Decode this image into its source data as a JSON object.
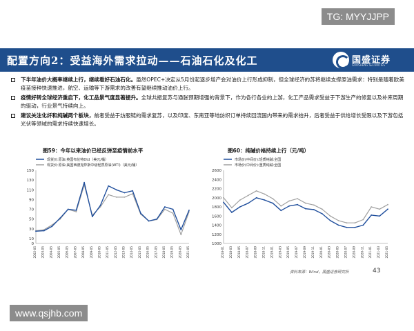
{
  "watermarks": {
    "tg": "TG: MYYJJPP",
    "url": "www.qsjhb.com"
  },
  "header": {
    "title": "配置方向2：受益海外需求拉动——石油石化及化工",
    "logo_text": "国盛证券",
    "logo_sub": "GUOSHENG SECURITIES"
  },
  "bullets": [
    {
      "bold": "下半年油价大概率继续上行，继续看好石油石化。",
      "text": "虽然OPEC+决定从5月份起逐步增产会对油价上行形成抑制，但全球经济的苏将继续支撑原油需求：特别是随着欧美疫苗接种快速推进，航空、运输等下游需求的改善有望继续推动油价上行。"
    },
    {
      "bold": "疫情好转全球经济重启下，化工品景气度显著提升。",
      "text": "全球共振复苏与通胀预期增强的背景下，作为各行各业的上游，化工产品需求受益于下游生产的修复以及补库周期的驱动，行业景气持续向上。"
    },
    {
      "bold": "建议关注化纤和纯碱两个板块，",
      "text": "前者受益于纺服链的需求复苏，以及印度、东南亚等地纺织订单持续回流国内带来的需求抬升，后者受益于供给增长受限以及下游包括光伏等领域的需求持续快速增长。"
    }
  ],
  "chart_left": {
    "title": "图59：今年以来油价已经反弹至疫情前水平",
    "legend": [
      {
        "name": "现货价:原油:英国布伦特Dtd（美元/桶）",
        "color": "#1f4e9c"
      },
      {
        "name": "现货价:原油:美国西德克萨斯中级轻质原油(WTI)（美元/桶）",
        "color": "#a0a0a0"
      }
    ],
    "y_ticks": [
      "0",
      "10",
      "30",
      "50",
      "70",
      "90",
      "110",
      "130",
      "150"
    ],
    "x_ticks": [
      "2002-05",
      "2003-05",
      "2004-05",
      "2005-05",
      "2006-05",
      "2007-05",
      "2008-05",
      "2009-05",
      "2010-05",
      "2011-05",
      "2012-05",
      "2013-05",
      "2014-05",
      "2015-05",
      "2016-05",
      "2017-05",
      "2018-05",
      "2019-05",
      "2020-05",
      "2021-05"
    ]
  },
  "chart_right": {
    "title": "图60：纯碱价格持续上行（元/吨）",
    "legend": [
      {
        "name": "市场价(中间价):轻质纯碱:全国",
        "color": "#1f4e9c"
      },
      {
        "name": "市场价(中间价):重质纯碱:全国",
        "color": "#a0a0a0"
      }
    ],
    "y_ticks": [
      "1000",
      "1200",
      "1400",
      "1600",
      "1800",
      "2000",
      "2200",
      "2400",
      "2600"
    ],
    "x_ticks": [
      "2018-01",
      "2018-03",
      "2018-05",
      "2018-07",
      "2018-09",
      "2018-11",
      "2019-01",
      "2019-03",
      "2019-05",
      "2019-07",
      "2019-09",
      "2019-11",
      "2020-01",
      "2020-03",
      "2020-05",
      "2020-07",
      "2020-09",
      "2020-11",
      "2021-01",
      "2021-03",
      "2021-05"
    ]
  },
  "chart_data": [
    {
      "type": "line",
      "title": "图59：今年以来油价已经反弹至疫情前水平",
      "ylim": [
        0,
        150
      ],
      "x": [
        "2002-05",
        "2003-05",
        "2004-05",
        "2005-05",
        "2006-05",
        "2007-05",
        "2008-05",
        "2009-05",
        "2010-05",
        "2011-05",
        "2012-05",
        "2013-05",
        "2014-05",
        "2015-05",
        "2016-05",
        "2017-05",
        "2018-05",
        "2019-05",
        "2020-05",
        "2021-05"
      ],
      "series": [
        {
          "name": "现货价:原油:英国布伦特Dtd（美元/桶）",
          "values": [
            25,
            26,
            35,
            52,
            70,
            68,
            125,
            55,
            78,
            118,
            110,
            104,
            108,
            62,
            46,
            50,
            75,
            70,
            28,
            68
          ]
        },
        {
          "name": "现货价:原油:美国西德克萨斯中级轻质原油(WTI)（美元/桶）",
          "values": [
            26,
            28,
            38,
            50,
            70,
            65,
            120,
            58,
            75,
            100,
            95,
            95,
            102,
            60,
            46,
            49,
            70,
            62,
            18,
            65
          ]
        }
      ]
    },
    {
      "type": "line",
      "title": "图60：纯碱价格持续上行（元/吨）",
      "ylim": [
        1000,
        2600
      ],
      "x": [
        "2018-01",
        "2018-03",
        "2018-05",
        "2018-07",
        "2018-09",
        "2018-11",
        "2019-01",
        "2019-03",
        "2019-05",
        "2019-07",
        "2019-09",
        "2019-11",
        "2020-01",
        "2020-03",
        "2020-05",
        "2020-07",
        "2020-09",
        "2020-11",
        "2021-01",
        "2021-03",
        "2021-05"
      ],
      "series": [
        {
          "name": "市场价(中间价):轻质纯碱:全国",
          "values": [
            1900,
            1680,
            1800,
            1880,
            2000,
            1950,
            1880,
            1720,
            1820,
            1850,
            1760,
            1740,
            1650,
            1500,
            1400,
            1350,
            1350,
            1400,
            1620,
            1600,
            1750
          ]
        },
        {
          "name": "市场价(中间价):重质纯碱:全国",
          "values": [
            2000,
            1780,
            1950,
            2050,
            2150,
            2080,
            1980,
            1820,
            1930,
            1980,
            1880,
            1840,
            1750,
            1600,
            1500,
            1450,
            1450,
            1520,
            1800,
            1750,
            1850
          ]
        }
      ]
    }
  ],
  "footer": {
    "source": "资料来源：Wind，国盛证券研究所",
    "page": "43"
  }
}
